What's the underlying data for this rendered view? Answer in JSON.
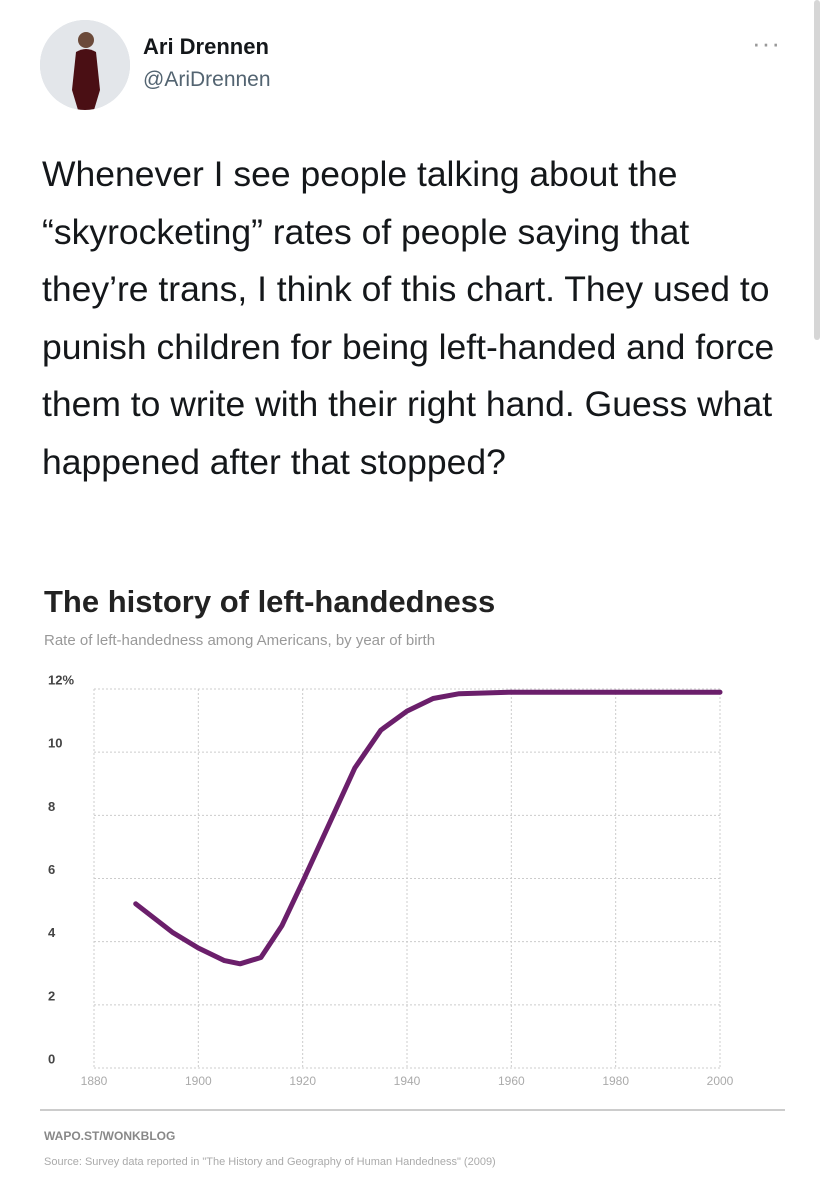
{
  "tweet": {
    "name": "Ari Drennen",
    "handle": "@AriDrennen",
    "text": "Whenever I see people talking about the “skyrocketing” rates of people saying that they’re trans, I think of this chart. They used to punish children for being left-handed and force them to write with their right hand. Guess what happened after that stopped?"
  },
  "chart_data": {
    "type": "line",
    "title": "The history of left-handedness",
    "subtitle": "Rate of left-handedness among Americans, by year of birth",
    "x": [
      1888,
      1895,
      1900,
      1905,
      1908,
      1912,
      1916,
      1920,
      1925,
      1930,
      1935,
      1940,
      1945,
      1950,
      1960,
      1980,
      2000
    ],
    "series": [
      {
        "color": "#6b1f6b",
        "values": [
          5.2,
          4.3,
          3.8,
          3.4,
          3.3,
          3.5,
          4.5,
          5.9,
          7.7,
          9.5,
          10.7,
          11.3,
          11.7,
          11.85,
          11.9,
          11.9,
          11.9
        ]
      }
    ],
    "xlim": [
      1880,
      2000
    ],
    "xticks": [
      1880,
      1900,
      1920,
      1940,
      1960,
      1980,
      2000
    ],
    "ylim": [
      0,
      12
    ],
    "yticks": [
      0,
      2,
      4,
      6,
      8,
      10,
      {
        "value": 12,
        "label": "12%"
      }
    ],
    "grid": true,
    "credit": "WAPO.ST/WONKBLOG",
    "source": "Source: Survey data reported in \"The History and Geography of Human Handedness\" (2009)"
  }
}
